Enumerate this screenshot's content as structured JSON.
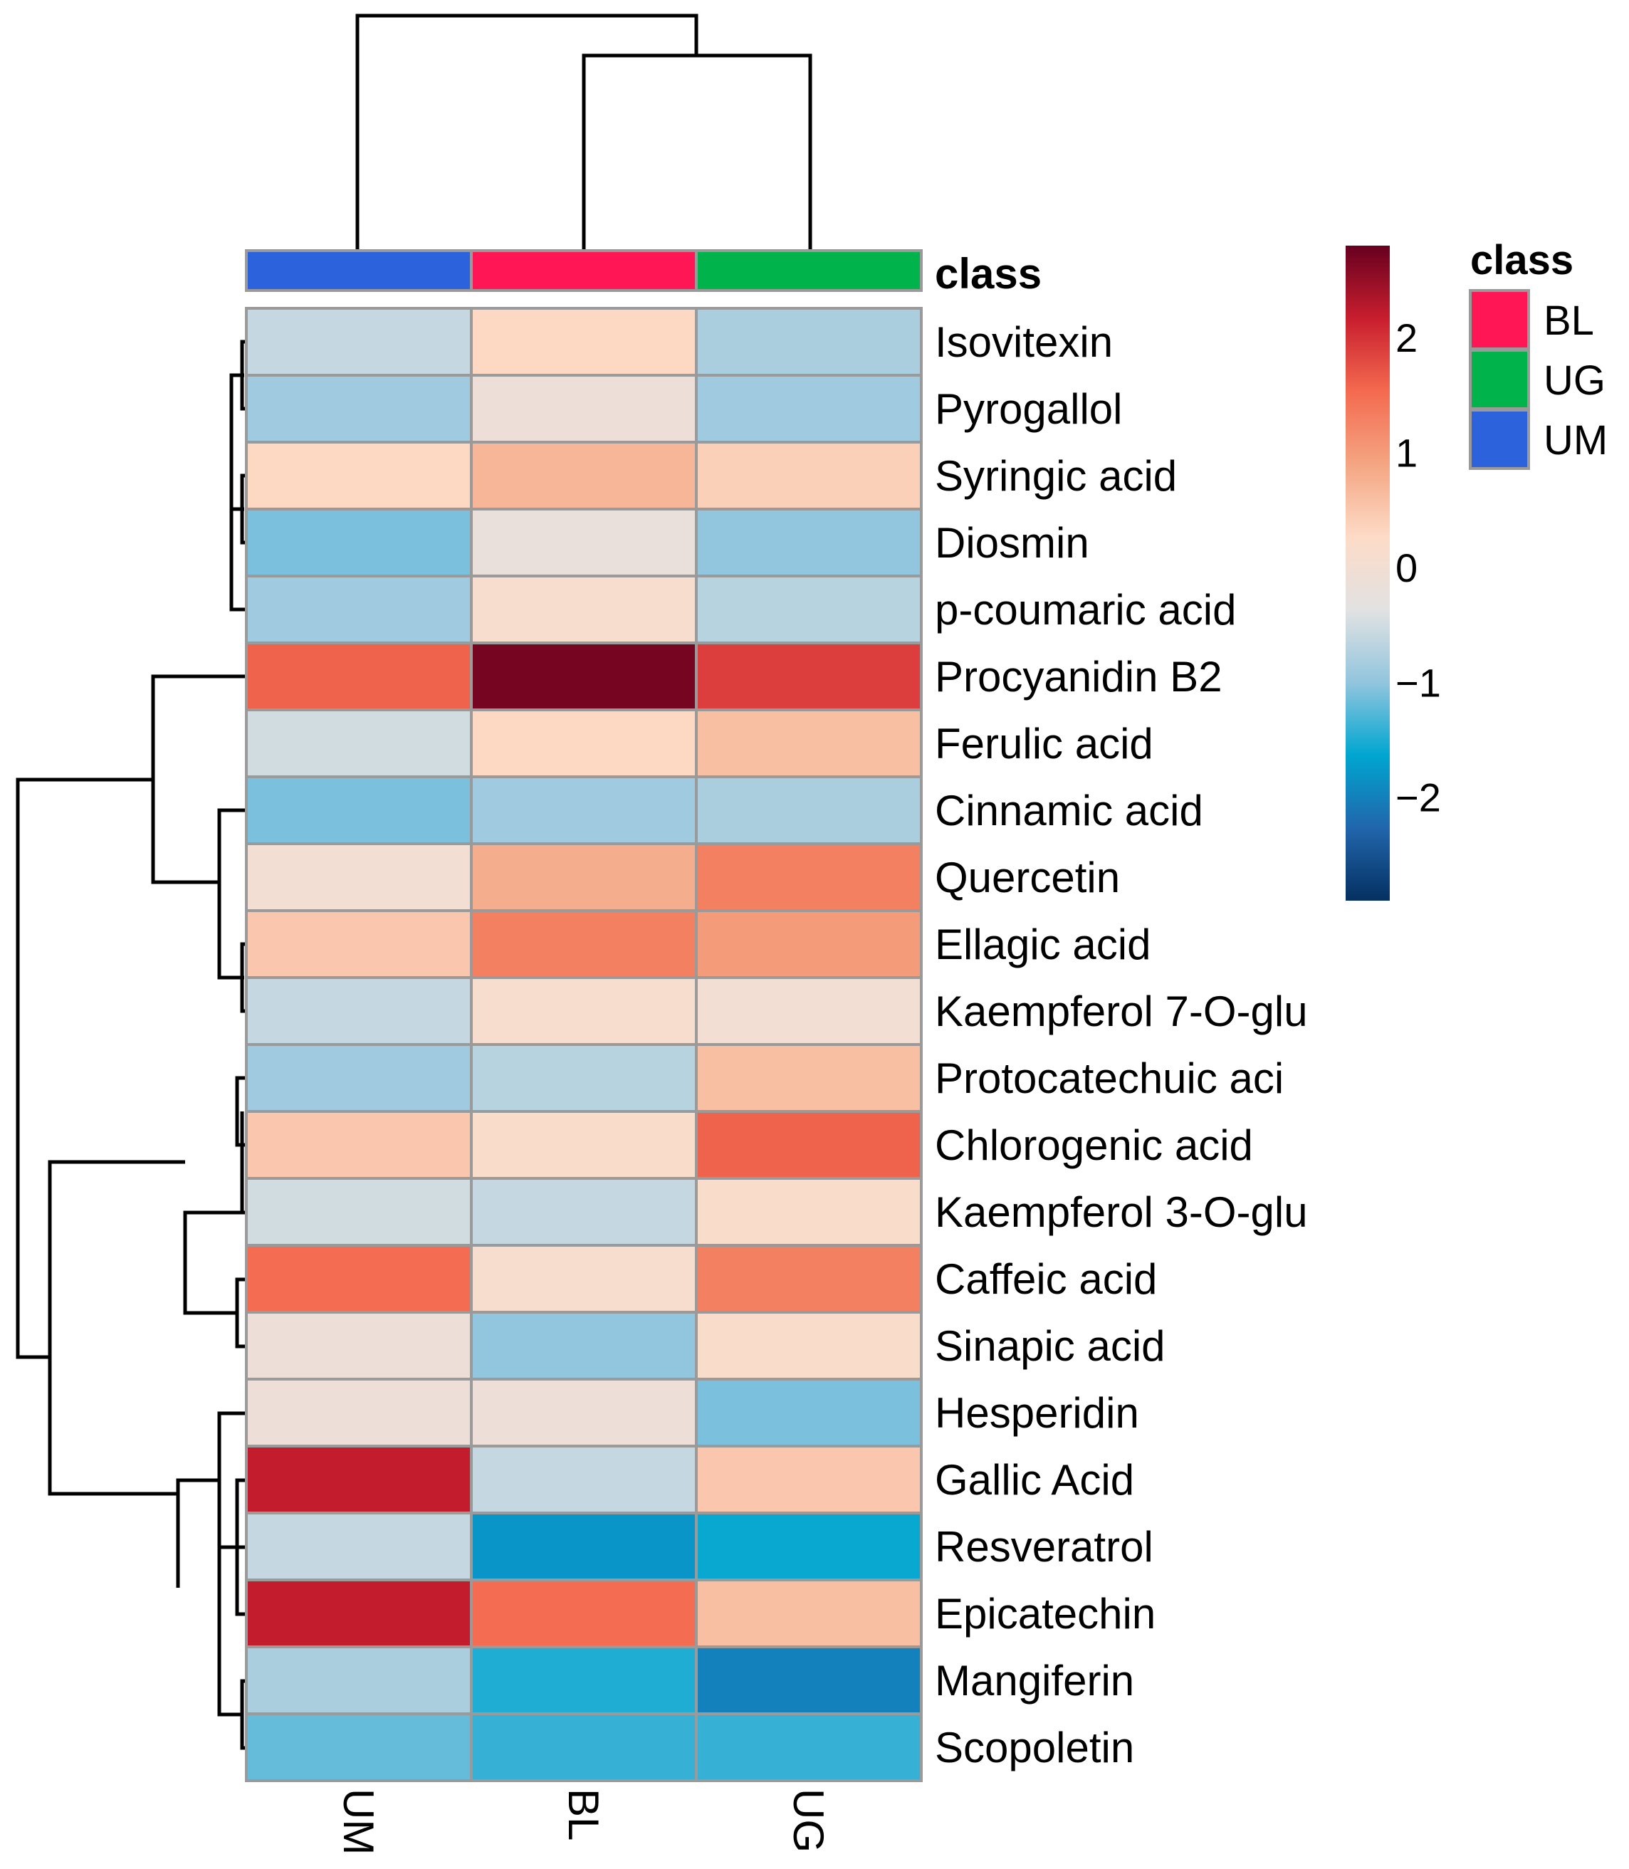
{
  "chart_data": {
    "type": "heatmap",
    "title": "",
    "columns": [
      "UM",
      "BL",
      "UG"
    ],
    "column_classes": [
      "UM",
      "BL",
      "UG"
    ],
    "rows": [
      "Isovitexin",
      "Pyrogallol",
      "Syringic acid",
      "Diosmin",
      "p-coumaric acid",
      "Procyanidin B2",
      "Ferulic acid",
      "Cinnamic acid",
      "Quercetin",
      "Ellagic acid",
      "Kaempferol 7-O-glu",
      "Protocatechuic aci",
      "Chlorogenic acid",
      "Kaempferol 3-O-glu",
      "Caffeic acid",
      "Sinapic acid",
      "Hesperidin",
      "Gallic Acid",
      "Resveratrol",
      "Epicatechin",
      "Mangiferin",
      "Scopoletin"
    ],
    "values": [
      [
        -0.6,
        0.3,
        -0.8
      ],
      [
        -0.9,
        -0.1,
        -0.9
      ],
      [
        0.3,
        0.7,
        0.4
      ],
      [
        -1.1,
        -0.2,
        -1.0
      ],
      [
        -0.9,
        0.1,
        -0.7
      ],
      [
        1.6,
        2.7,
        1.9
      ],
      [
        -0.5,
        0.3,
        0.6
      ],
      [
        -1.1,
        -0.9,
        -0.8
      ],
      [
        0.0,
        0.8,
        1.3
      ],
      [
        0.5,
        1.3,
        1.0
      ],
      [
        -0.6,
        0.1,
        0.0
      ],
      [
        -0.9,
        -0.7,
        0.6
      ],
      [
        0.5,
        0.2,
        1.6
      ],
      [
        -0.5,
        -0.6,
        0.2
      ],
      [
        1.5,
        0.1,
        1.3
      ],
      [
        -0.1,
        -1.0,
        0.2
      ],
      [
        -0.1,
        -0.1,
        -1.1
      ],
      [
        2.2,
        -0.6,
        0.5
      ],
      [
        -0.6,
        -1.8,
        -1.6
      ],
      [
        2.2,
        1.5,
        0.6
      ],
      [
        -0.8,
        -1.5,
        -2.0
      ],
      [
        -1.2,
        -1.4,
        -1.4
      ]
    ],
    "row_annotation_title": "class",
    "legend": {
      "title": "class",
      "items": [
        {
          "label": "BL",
          "color": "#FF1654"
        },
        {
          "label": "UG",
          "color": "#00B34A"
        },
        {
          "label": "UM",
          "color": "#2C62DC"
        }
      ]
    },
    "colorbar": {
      "range": [
        -2.9,
        2.8
      ],
      "ticks": [
        2,
        1,
        0,
        -1,
        -2
      ],
      "tick_labels": [
        "2",
        "1",
        "0",
        "−1",
        "−2"
      ],
      "colors": [
        "#053061",
        "#2166AC",
        "#00A6D0",
        "#92C5DE",
        "#E2E2E2",
        "#FDDBC7",
        "#F4A582",
        "#F46A4F",
        "#C81E2E",
        "#67001F"
      ]
    }
  }
}
